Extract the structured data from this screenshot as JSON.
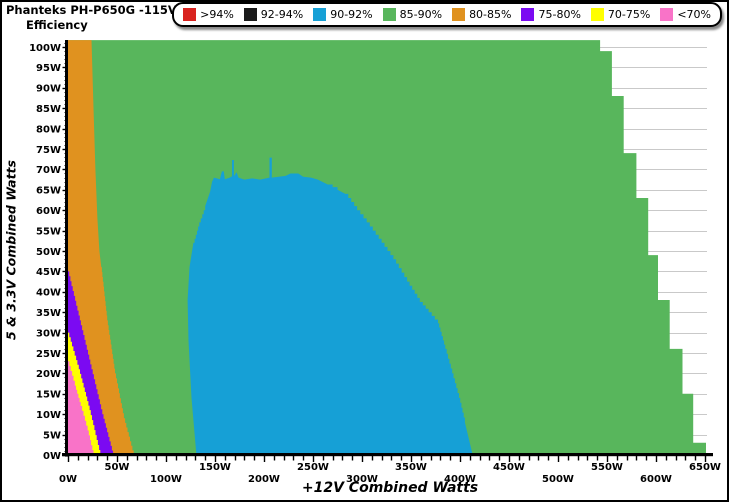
{
  "title": {
    "line1": "Phanteks PH-P650G -115V",
    "line2": "Efficiency"
  },
  "legend": {
    "items": [
      {
        "label": ">94%",
        "color": "#d9231f"
      },
      {
        "label": "92-94%",
        "color": "#1a1a1a"
      },
      {
        "label": "90-92%",
        "color": "#16a0d6"
      },
      {
        "label": "85-90%",
        "color": "#58b65c"
      },
      {
        "label": "80-85%",
        "color": "#e0921f"
      },
      {
        "label": "75-80%",
        "color": "#7b0af2"
      },
      {
        "label": "70-75%",
        "color": "#ffff00"
      },
      {
        "label": "<70%",
        "color": "#f973c8"
      }
    ]
  },
  "chart_data": {
    "type": "heatmap",
    "title": "Phanteks PH-P650G -115V Efficiency",
    "xlabel": "+12V Combined Watts",
    "ylabel": "5 & 3.3V Combined Watts",
    "xlim": [
      0,
      657
    ],
    "ylim": [
      0,
      101.7
    ],
    "x_label_step": 50,
    "x_tick_step": 10,
    "y_label_step": 5,
    "y_tick_step": 1,
    "grid": "horizontal gridlines every 5W, visible outside colored regions",
    "legend_position": "top-right",
    "x_tick_labels": [
      "0W",
      "50W",
      "100W",
      "150W",
      "200W",
      "250W",
      "300W",
      "350W",
      "400W",
      "450W",
      "500W",
      "550W",
      "600W",
      "650W"
    ],
    "y_tick_labels": [
      "0W",
      "5W",
      "10W",
      "15W",
      "20W",
      "25W",
      "30W",
      "35W",
      "40W",
      "45W",
      "50W",
      "55W",
      "60W",
      "65W",
      "70W",
      "75W",
      "80W",
      "85W",
      "90W",
      "95W",
      "100W"
    ],
    "colors": {
      "red": "#d9231f",
      "black": "#1a1a1a",
      "blue": "#16a0d6",
      "green": "#58b65c",
      "orange": "#e0921f",
      "purple": "#7b0af2",
      "yellow": "#ffff00",
      "pink": "#f973c8",
      "grid": "#c9c9c9",
      "axis": "#000000"
    },
    "regions": [
      {
        "band": "85-90%",
        "color": "green",
        "polygon": [
          [
            0,
            0
          ],
          [
            0,
            101.7
          ],
          [
            543,
            101.7
          ],
          [
            543,
            99
          ],
          [
            555,
            99
          ],
          [
            555,
            88
          ],
          [
            567,
            88
          ],
          [
            567,
            74
          ],
          [
            580,
            74
          ],
          [
            580,
            63
          ],
          [
            592,
            63
          ],
          [
            592,
            49
          ],
          [
            602,
            49
          ],
          [
            602,
            38
          ],
          [
            614,
            38
          ],
          [
            614,
            26
          ],
          [
            627,
            26
          ],
          [
            627,
            15
          ],
          [
            638,
            15
          ],
          [
            638,
            3
          ],
          [
            651,
            3
          ],
          [
            651,
            0
          ]
        ]
      },
      {
        "band": "80-85%",
        "color": "orange",
        "polygon": [
          [
            0,
            0
          ],
          [
            0,
            101.7
          ],
          [
            24,
            101.7
          ],
          [
            26,
            85
          ],
          [
            28,
            70
          ],
          [
            30,
            58
          ],
          [
            32,
            50
          ],
          [
            34,
            46
          ],
          [
            40,
            33
          ],
          [
            48,
            20
          ],
          [
            57,
            9
          ],
          [
            67,
            0
          ]
        ]
      },
      {
        "band": "75-80%",
        "color": "purple",
        "polygon": [
          [
            0,
            45
          ],
          [
            12,
            33
          ],
          [
            24,
            21
          ],
          [
            35,
            10
          ],
          [
            46,
            0
          ],
          [
            33,
            0
          ],
          [
            22,
            11
          ],
          [
            11,
            21
          ],
          [
            0,
            30
          ]
        ]
      },
      {
        "band": "70-75%",
        "color": "yellow",
        "polygon": [
          [
            0,
            30
          ],
          [
            11,
            21
          ],
          [
            22,
            11
          ],
          [
            33,
            0
          ],
          [
            26,
            0
          ],
          [
            13,
            12
          ],
          [
            0,
            23
          ]
        ]
      },
      {
        "band": "<70%",
        "color": "pink",
        "polygon": [
          [
            0,
            23
          ],
          [
            7,
            17
          ],
          [
            13,
            12
          ],
          [
            20,
            6
          ],
          [
            26,
            0
          ],
          [
            0,
            0
          ]
        ]
      },
      {
        "band": "90-92%",
        "color": "blue",
        "polygon": [
          [
            131,
            0
          ],
          [
            126,
            14
          ],
          [
            123,
            28
          ],
          [
            122,
            38
          ],
          [
            124,
            46
          ],
          [
            128,
            52
          ],
          [
            134,
            57
          ],
          [
            140,
            61
          ],
          [
            145,
            64.5
          ],
          [
            147,
            67
          ],
          [
            149,
            68
          ],
          [
            155,
            67.6
          ],
          [
            157,
            69.5
          ],
          [
            159,
            69.5
          ],
          [
            160,
            67.6
          ],
          [
            165,
            68
          ],
          [
            167.3,
            68.3
          ],
          [
            167.3,
            72.3
          ],
          [
            169.3,
            72.3
          ],
          [
            169.3,
            68.3
          ],
          [
            172,
            69.3
          ],
          [
            174,
            68
          ],
          [
            180,
            67.5
          ],
          [
            188,
            67.8
          ],
          [
            196,
            67.5
          ],
          [
            205.6,
            68
          ],
          [
            205.6,
            72.9
          ],
          [
            208,
            72.9
          ],
          [
            208,
            68
          ],
          [
            215,
            68.2
          ],
          [
            222,
            68.4
          ],
          [
            227,
            69
          ],
          [
            235,
            69
          ],
          [
            240,
            68.2
          ],
          [
            248,
            68
          ],
          [
            255,
            67.5
          ],
          [
            265,
            66.3
          ],
          [
            275,
            65
          ],
          [
            283,
            64
          ],
          [
            295,
            60
          ],
          [
            308,
            56
          ],
          [
            320,
            52
          ],
          [
            332,
            48
          ],
          [
            346,
            42.5
          ],
          [
            359,
            37.5
          ],
          [
            368,
            35
          ],
          [
            377.5,
            32.3
          ],
          [
            385,
            26
          ],
          [
            392,
            20
          ],
          [
            399,
            14
          ],
          [
            405,
            8
          ],
          [
            409,
            4
          ],
          [
            413,
            0
          ]
        ]
      }
    ]
  }
}
